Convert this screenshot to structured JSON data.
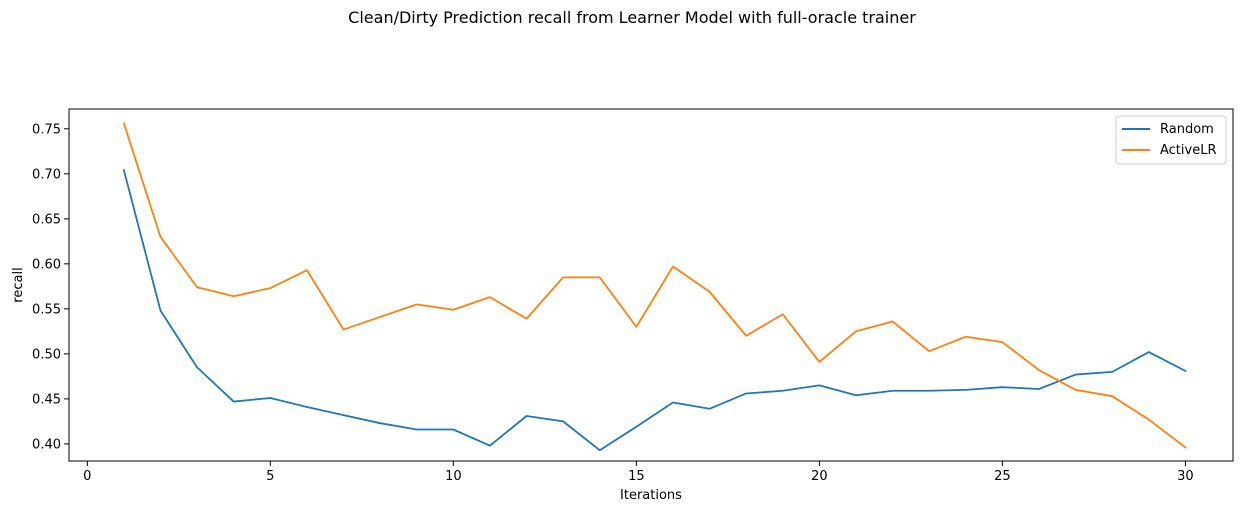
{
  "chart_data": {
    "type": "line",
    "title": "Clean/Dirty Prediction recall from Learner Model with full-oracle trainer",
    "xlabel": "Iterations",
    "ylabel": "recall",
    "xlim": [
      -0.5,
      31.3
    ],
    "ylim": [
      0.381,
      0.772
    ],
    "xticks": [
      0,
      5,
      10,
      15,
      20,
      25,
      30
    ],
    "yticks": [
      0.4,
      0.45,
      0.5,
      0.55,
      0.6,
      0.65,
      0.7,
      0.75
    ],
    "xtick_labels": [
      "0",
      "5",
      "10",
      "15",
      "20",
      "25",
      "30"
    ],
    "ytick_labels": [
      "0.40",
      "0.45",
      "0.50",
      "0.55",
      "0.60",
      "0.65",
      "0.70",
      "0.75"
    ],
    "grid": false,
    "legend_position": "top-right",
    "x": [
      1,
      2,
      3,
      4,
      5,
      6,
      7,
      8,
      9,
      10,
      11,
      12,
      13,
      14,
      15,
      16,
      17,
      18,
      19,
      20,
      21,
      22,
      23,
      24,
      25,
      26,
      27,
      28,
      29,
      30
    ],
    "series": [
      {
        "name": "Random",
        "color": "#1f77b4",
        "values": [
          0.704,
          0.548,
          0.485,
          0.447,
          0.451,
          0.441,
          0.432,
          0.423,
          0.416,
          0.416,
          0.398,
          0.431,
          0.425,
          0.393,
          0.419,
          0.446,
          0.439,
          0.456,
          0.459,
          0.465,
          0.454,
          0.459,
          0.459,
          0.46,
          0.463,
          0.461,
          0.477,
          0.48,
          0.502,
          0.481
        ]
      },
      {
        "name": "ActiveLR",
        "color": "#ff7f0e",
        "values": [
          0.756,
          0.63,
          0.574,
          0.564,
          0.573,
          0.593,
          0.527,
          0.541,
          0.555,
          0.549,
          0.563,
          0.539,
          0.585,
          0.585,
          0.53,
          0.597,
          0.569,
          0.52,
          0.544,
          0.491,
          0.525,
          0.536,
          0.503,
          0.519,
          0.513,
          0.482,
          0.46,
          0.453,
          0.427,
          0.396
        ]
      }
    ]
  }
}
